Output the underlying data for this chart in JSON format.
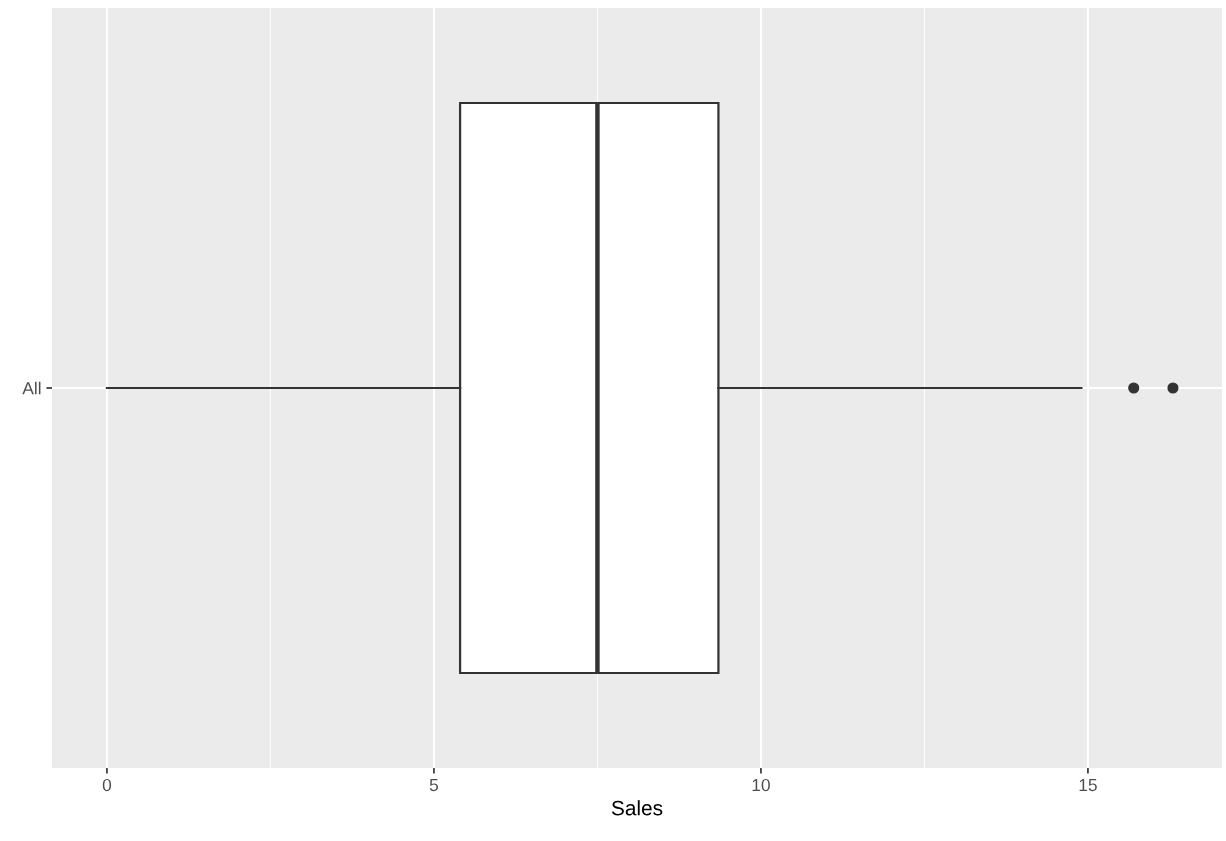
{
  "chart_data": {
    "type": "box",
    "orientation": "horizontal",
    "xlabel": "Sales",
    "categories": [
      "All"
    ],
    "boxes": [
      {
        "low": 0,
        "q1": 5.4,
        "median": 7.5,
        "q3": 9.35,
        "high": 14.9,
        "outliers": [
          15.7,
          16.3
        ]
      }
    ],
    "xlim": [
      -0.84,
      17.05
    ],
    "xticks": [
      0,
      5,
      10,
      15
    ],
    "grid": true
  }
}
